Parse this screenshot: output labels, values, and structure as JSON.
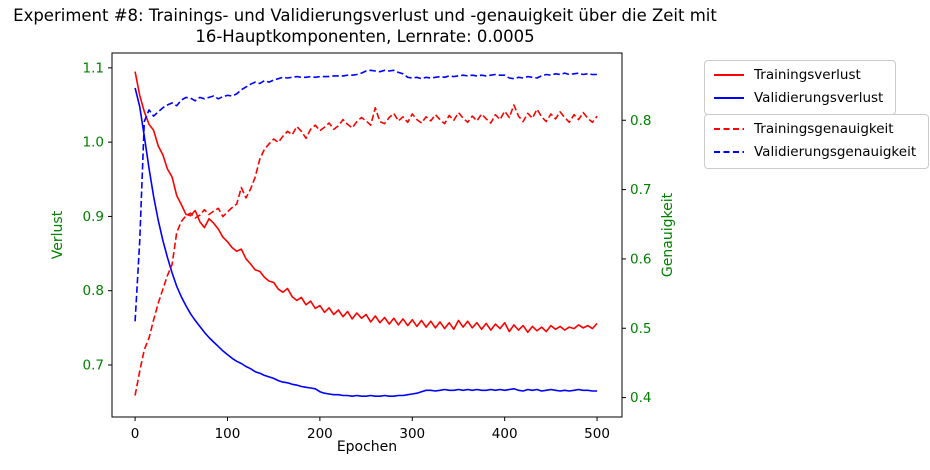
{
  "chart_data": {
    "type": "line",
    "title": "Experiment #8: Trainings- und Validierungsverlust und -genauigkeit über die Zeit mit\n16-Hauptkomponenten, Lernrate: 0.0005",
    "xlabel": "Epochen",
    "ylabel_left": "Verlust",
    "ylabel_right": "Genauigkeit",
    "axis_label_color": "#008000",
    "tick_label_color_y": "#008000",
    "tick_label_color_x": "#000000",
    "grid": false,
    "legend_position": "outside-right-top",
    "xlim": [
      -25,
      527
    ],
    "ylim_left": [
      0.63,
      1.12
    ],
    "ylim_right": [
      0.372,
      0.897
    ],
    "xticks": [
      0,
      100,
      200,
      300,
      400,
      500
    ],
    "yticks_left": [
      0.7,
      0.8,
      0.9,
      1.0,
      1.1
    ],
    "yticks_right": [
      0.4,
      0.5,
      0.6,
      0.7,
      0.8
    ],
    "x": [
      0,
      5,
      10,
      15,
      20,
      25,
      30,
      35,
      40,
      45,
      50,
      55,
      60,
      65,
      70,
      75,
      80,
      85,
      90,
      95,
      100,
      105,
      110,
      115,
      120,
      125,
      130,
      135,
      140,
      145,
      150,
      155,
      160,
      165,
      170,
      175,
      180,
      185,
      190,
      195,
      200,
      205,
      210,
      215,
      220,
      225,
      230,
      235,
      240,
      245,
      250,
      255,
      260,
      265,
      270,
      275,
      280,
      285,
      290,
      295,
      300,
      305,
      310,
      315,
      320,
      325,
      330,
      335,
      340,
      345,
      350,
      355,
      360,
      365,
      370,
      375,
      380,
      385,
      390,
      395,
      400,
      405,
      410,
      415,
      420,
      425,
      430,
      435,
      440,
      445,
      450,
      455,
      460,
      465,
      470,
      475,
      480,
      485,
      490,
      495,
      500
    ],
    "series": [
      {
        "name": "Trainingsverlust",
        "axis": "left",
        "color": "#ff0000",
        "style": "solid",
        "values": [
          1.095,
          1.063,
          1.041,
          1.024,
          1.016,
          0.995,
          0.983,
          0.964,
          0.953,
          0.928,
          0.916,
          0.903,
          0.901,
          0.908,
          0.893,
          0.885,
          0.897,
          0.891,
          0.883,
          0.872,
          0.866,
          0.858,
          0.853,
          0.856,
          0.843,
          0.836,
          0.828,
          0.826,
          0.818,
          0.813,
          0.811,
          0.802,
          0.798,
          0.803,
          0.792,
          0.787,
          0.791,
          0.781,
          0.786,
          0.776,
          0.78,
          0.771,
          0.777,
          0.768,
          0.774,
          0.765,
          0.772,
          0.762,
          0.77,
          0.763,
          0.768,
          0.758,
          0.766,
          0.757,
          0.764,
          0.755,
          0.763,
          0.754,
          0.762,
          0.753,
          0.761,
          0.752,
          0.76,
          0.751,
          0.759,
          0.75,
          0.758,
          0.749,
          0.757,
          0.748,
          0.76,
          0.751,
          0.759,
          0.75,
          0.757,
          0.748,
          0.756,
          0.747,
          0.755,
          0.749,
          0.757,
          0.745,
          0.754,
          0.747,
          0.753,
          0.744,
          0.752,
          0.746,
          0.751,
          0.745,
          0.753,
          0.748,
          0.752,
          0.747,
          0.751,
          0.749,
          0.754,
          0.75,
          0.753,
          0.749,
          0.756
        ]
      },
      {
        "name": "Validierungsverlust",
        "axis": "left",
        "color": "#0000ff",
        "style": "solid",
        "values": [
          1.073,
          1.048,
          1.008,
          0.965,
          0.927,
          0.895,
          0.868,
          0.845,
          0.824,
          0.806,
          0.792,
          0.78,
          0.769,
          0.76,
          0.752,
          0.744,
          0.737,
          0.731,
          0.725,
          0.719,
          0.714,
          0.709,
          0.705,
          0.702,
          0.698,
          0.695,
          0.691,
          0.689,
          0.686,
          0.684,
          0.682,
          0.679,
          0.677,
          0.676,
          0.674,
          0.673,
          0.671,
          0.67,
          0.669,
          0.668,
          0.664,
          0.662,
          0.661,
          0.66,
          0.66,
          0.659,
          0.659,
          0.658,
          0.659,
          0.658,
          0.658,
          0.659,
          0.658,
          0.658,
          0.659,
          0.658,
          0.658,
          0.659,
          0.659,
          0.66,
          0.661,
          0.662,
          0.664,
          0.666,
          0.666,
          0.665,
          0.666,
          0.667,
          0.666,
          0.666,
          0.667,
          0.666,
          0.667,
          0.666,
          0.667,
          0.666,
          0.666,
          0.667,
          0.666,
          0.667,
          0.666,
          0.667,
          0.668,
          0.666,
          0.665,
          0.667,
          0.666,
          0.667,
          0.665,
          0.666,
          0.667,
          0.666,
          0.665,
          0.666,
          0.665,
          0.666,
          0.667,
          0.666,
          0.666,
          0.665,
          0.665
        ]
      },
      {
        "name": "Trainingsgenauigkeit",
        "axis": "right",
        "color": "#ff0000",
        "style": "dashed",
        "values": [
          0.403,
          0.438,
          0.469,
          0.486,
          0.512,
          0.536,
          0.556,
          0.576,
          0.592,
          0.638,
          0.654,
          0.662,
          0.666,
          0.659,
          0.663,
          0.671,
          0.664,
          0.669,
          0.673,
          0.661,
          0.668,
          0.674,
          0.679,
          0.703,
          0.688,
          0.701,
          0.718,
          0.744,
          0.758,
          0.766,
          0.773,
          0.768,
          0.777,
          0.784,
          0.779,
          0.791,
          0.784,
          0.774,
          0.787,
          0.793,
          0.785,
          0.79,
          0.796,
          0.787,
          0.792,
          0.801,
          0.794,
          0.789,
          0.798,
          0.804,
          0.799,
          0.793,
          0.818,
          0.798,
          0.795,
          0.804,
          0.81,
          0.799,
          0.805,
          0.797,
          0.809,
          0.801,
          0.796,
          0.805,
          0.799,
          0.808,
          0.801,
          0.795,
          0.807,
          0.8,
          0.811,
          0.803,
          0.797,
          0.806,
          0.799,
          0.809,
          0.802,
          0.796,
          0.808,
          0.801,
          0.813,
          0.804,
          0.822,
          0.806,
          0.798,
          0.81,
          0.803,
          0.816,
          0.805,
          0.798,
          0.809,
          0.802,
          0.812,
          0.804,
          0.797,
          0.808,
          0.801,
          0.811,
          0.803,
          0.797,
          0.806
        ]
      },
      {
        "name": "Validierungsgenauigkeit",
        "axis": "right",
        "color": "#0000ff",
        "style": "dashed",
        "values": [
          0.51,
          0.625,
          0.798,
          0.815,
          0.806,
          0.812,
          0.818,
          0.822,
          0.825,
          0.821,
          0.829,
          0.833,
          0.832,
          0.828,
          0.833,
          0.831,
          0.833,
          0.835,
          0.831,
          0.834,
          0.836,
          0.835,
          0.838,
          0.844,
          0.848,
          0.852,
          0.855,
          0.853,
          0.857,
          0.855,
          0.858,
          0.86,
          0.862,
          0.861,
          0.862,
          0.863,
          0.862,
          0.862,
          0.863,
          0.862,
          0.863,
          0.863,
          0.863,
          0.864,
          0.864,
          0.864,
          0.865,
          0.865,
          0.866,
          0.868,
          0.871,
          0.872,
          0.871,
          0.87,
          0.872,
          0.871,
          0.872,
          0.869,
          0.867,
          0.862,
          0.861,
          0.862,
          0.86,
          0.862,
          0.861,
          0.862,
          0.863,
          0.862,
          0.864,
          0.863,
          0.864,
          0.865,
          0.864,
          0.865,
          0.864,
          0.865,
          0.864,
          0.865,
          0.866,
          0.865,
          0.865,
          0.861,
          0.86,
          0.862,
          0.861,
          0.863,
          0.862,
          0.861,
          0.864,
          0.866,
          0.865,
          0.867,
          0.866,
          0.868,
          0.866,
          0.867,
          0.868,
          0.866,
          0.867,
          0.866,
          0.866
        ]
      }
    ],
    "legend_boxes": [
      {
        "name": "loss",
        "entries": [
          {
            "label": "Trainingsverlust",
            "color": "#ff0000",
            "style": "solid"
          },
          {
            "label": "Validierungsverlust",
            "color": "#0000ff",
            "style": "solid"
          }
        ]
      },
      {
        "name": "accuracy",
        "entries": [
          {
            "label": "Trainingsgenauigkeit",
            "color": "#ff0000",
            "style": "dashed"
          },
          {
            "label": "Validierungsgenauigkeit",
            "color": "#0000ff",
            "style": "dashed"
          }
        ]
      }
    ]
  }
}
